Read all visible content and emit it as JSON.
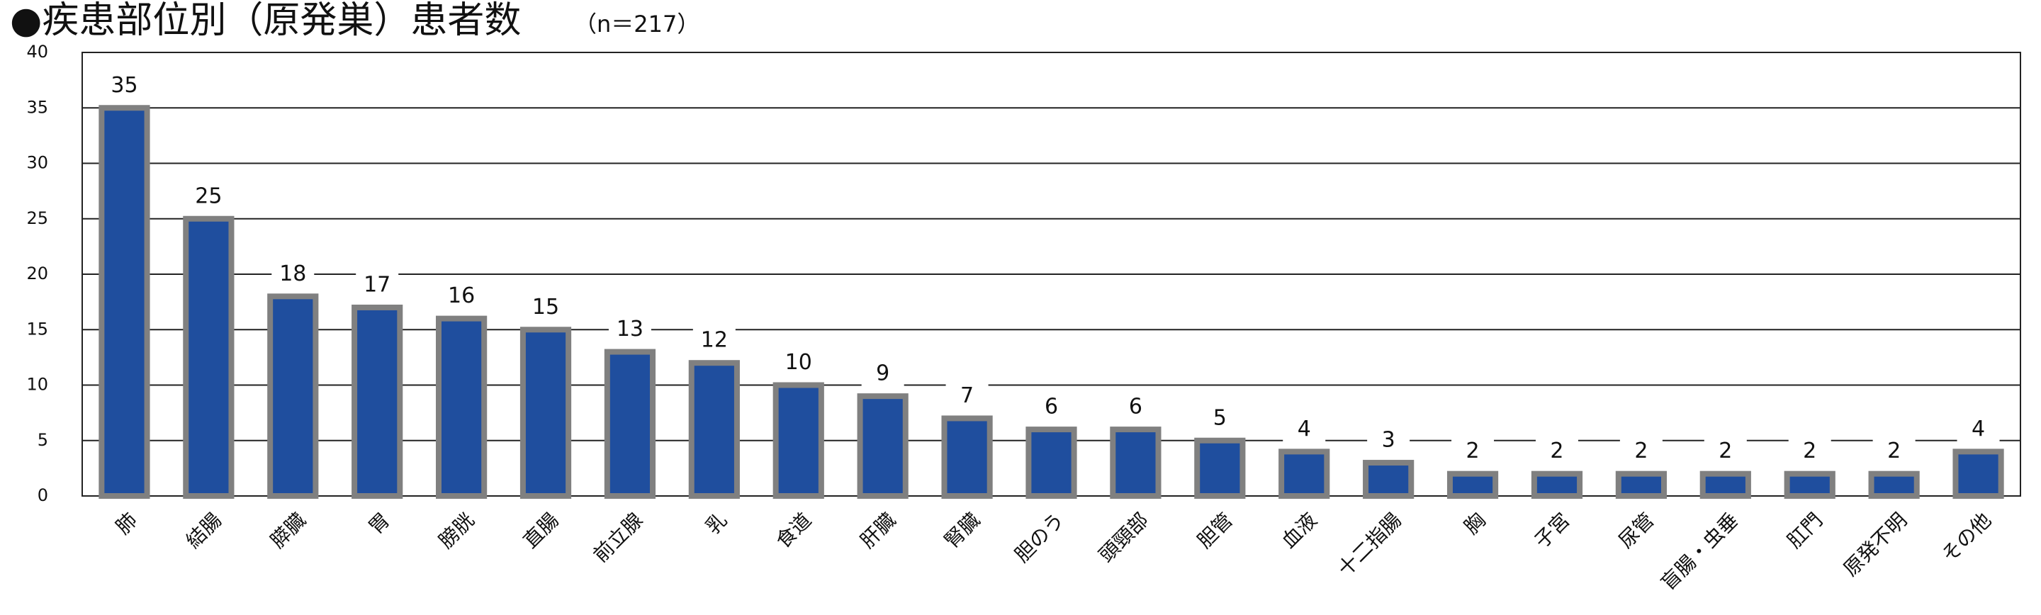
{
  "chart_data": {
    "type": "bar",
    "title": "●疾患部位別（原発巣）患者数",
    "subtitle": "（n＝217）",
    "categories": [
      "肺",
      "結腸",
      "膵臓",
      "胃",
      "膀胱",
      "直腸",
      "前立腺",
      "乳",
      "食道",
      "肝臓",
      "腎臓",
      "胆のう",
      "頭頸部",
      "胆管",
      "血液",
      "十二指腸",
      "胸",
      "子宮",
      "尿管",
      "盲腸・虫垂",
      "肛門",
      "原発不明",
      "その他"
    ],
    "values": [
      35,
      25,
      18,
      17,
      16,
      15,
      13,
      12,
      10,
      9,
      7,
      6,
      6,
      5,
      4,
      3,
      2,
      2,
      2,
      2,
      2,
      2,
      4
    ],
    "color": "#1f4e9e",
    "ylim": [
      0,
      40
    ],
    "yticks": [
      0,
      5,
      10,
      15,
      20,
      25,
      30,
      35,
      40
    ],
    "grid": true
  }
}
